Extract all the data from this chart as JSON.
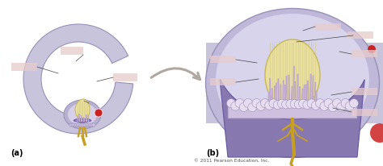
{
  "white_bg": "#ffffff",
  "label_a": "(a)",
  "label_b": "(b)",
  "copyright": "© 2011 Pearson Education, Inc.",
  "canal_color": "#c8c4dc",
  "canal_dark": "#9890b8",
  "canal_light": "#dcdaf0",
  "ampulla_color": "#b8b0d0",
  "cupula_color": "#e8dfa0",
  "cupula_stripe": "#d4c870",
  "hair_purple": "#c0a8cc",
  "hair_dark": "#9977aa",
  "nerve_color": "#c8a020",
  "nerve_dark": "#a07810",
  "base_purple": "#8878b0",
  "base_dark": "#6655a0",
  "support_color": "#d0c0e0",
  "support_bumps": "#e8ddf0",
  "red_accent": "#cc2222",
  "arrow_color": "#b0a8a0",
  "label_box": "#e8cccc",
  "label_line": "#444444",
  "fig_width": 4.74,
  "fig_height": 2.07,
  "dpi": 100
}
